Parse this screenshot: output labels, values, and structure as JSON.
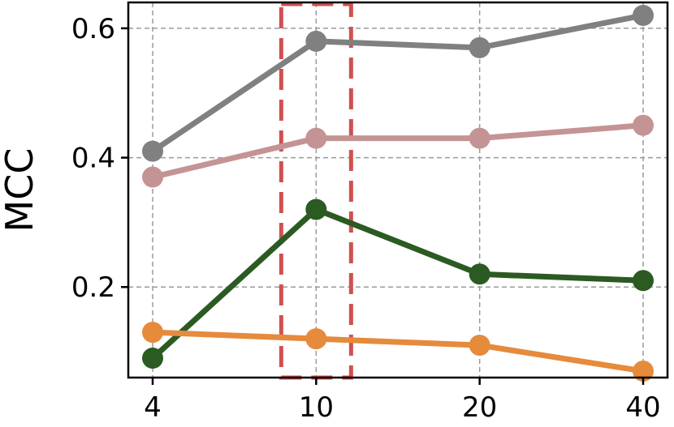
{
  "chart_data": {
    "type": "line",
    "title": "",
    "xlabel": "",
    "ylabel": "MCC",
    "x": [
      4,
      10,
      20,
      40
    ],
    "x_tick_labels": [
      "4",
      "10",
      "20",
      "40"
    ],
    "x_scale": "categorical-evenly-spaced",
    "ylim": [
      0.06,
      0.64
    ],
    "y_ticks": [
      0.2,
      0.4,
      0.6
    ],
    "y_tick_labels": [
      "0.2",
      "0.4",
      "0.6"
    ],
    "grid": true,
    "legend": "none",
    "highlight": {
      "x": 10,
      "style": "dashed-rectangle",
      "color": "#d05050"
    },
    "series": [
      {
        "color": "#808080",
        "values": [
          0.41,
          0.58,
          0.57,
          0.62
        ]
      },
      {
        "color": "#c49494",
        "values": [
          0.37,
          0.43,
          0.43,
          0.45
        ]
      },
      {
        "color": "#2b5a22",
        "values": [
          0.09,
          0.32,
          0.22,
          0.21
        ]
      },
      {
        "color": "#e68a3c",
        "values": [
          0.13,
          0.12,
          0.11,
          0.07
        ]
      }
    ]
  }
}
